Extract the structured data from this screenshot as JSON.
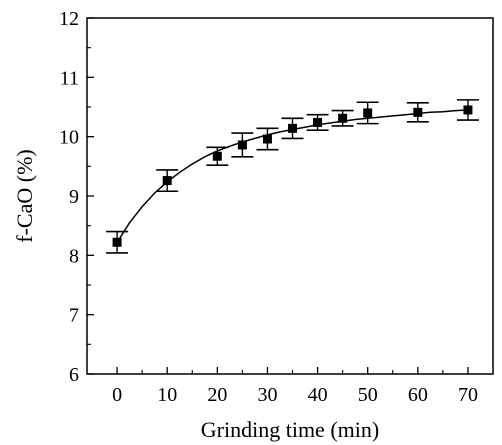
{
  "chart_data": {
    "type": "scatter",
    "title": "",
    "xlabel": "Grinding time (min)",
    "ylabel": "f-CaO (%)",
    "xlim": [
      -6,
      75
    ],
    "ylim": [
      6,
      12
    ],
    "x_ticks": [
      0,
      10,
      20,
      30,
      40,
      50,
      60,
      70
    ],
    "y_ticks": [
      6,
      7,
      8,
      9,
      10,
      11,
      12
    ],
    "grid": false,
    "legend": "none",
    "series": [
      {
        "x": [
          0,
          10,
          20,
          25,
          30,
          35,
          40,
          45,
          50,
          60,
          70
        ],
        "y": [
          8.22,
          9.26,
          9.67,
          9.86,
          9.96,
          10.14,
          10.24,
          10.31,
          10.4,
          10.41,
          10.45
        ],
        "yerr": [
          0.18,
          0.18,
          0.15,
          0.2,
          0.18,
          0.17,
          0.13,
          0.13,
          0.18,
          0.16,
          0.17
        ]
      }
    ],
    "fit_curve": {
      "x": [
        0,
        2.5,
        5,
        7.5,
        10,
        12.5,
        15,
        17.5,
        20,
        22.5,
        25,
        27.5,
        30,
        32.5,
        35,
        37.5,
        40,
        42.5,
        45,
        47.5,
        50,
        52.5,
        55,
        57.5,
        60,
        62.5,
        65,
        67.5,
        70
      ],
      "y": [
        8.22,
        8.55,
        8.82,
        9.05,
        9.24,
        9.4,
        9.54,
        9.66,
        9.76,
        9.84,
        9.91,
        9.97,
        10.03,
        10.08,
        10.12,
        10.16,
        10.2,
        10.23,
        10.26,
        10.29,
        10.31,
        10.33,
        10.35,
        10.37,
        10.39,
        10.41,
        10.42,
        10.44,
        10.45
      ]
    },
    "colors": {
      "marker": "#000000",
      "line": "#000000",
      "axis": "#000000"
    }
  }
}
